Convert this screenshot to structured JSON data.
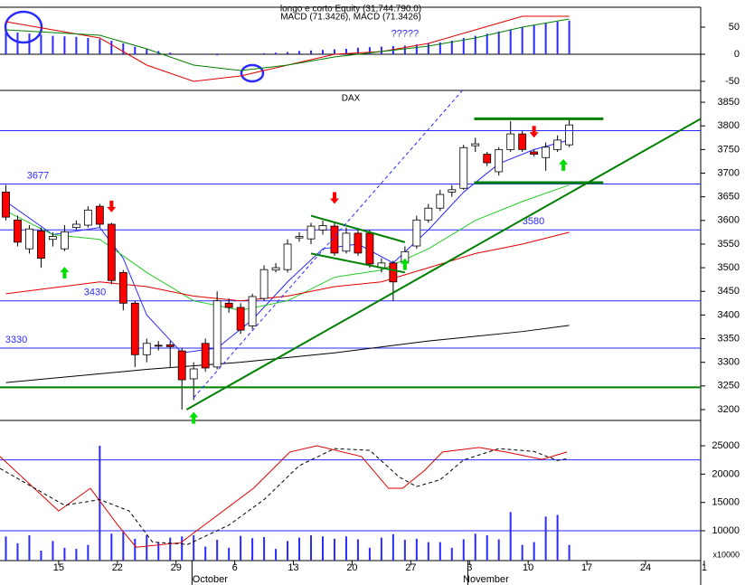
{
  "chart_data": [
    {
      "type": "macd",
      "title": "longo e corto Equity (31,744.790.0)",
      "subtitle": "MACD (71.3426), MACD (71.3426)",
      "annotation": {
        "text": "?????",
        "x": 34,
        "y": 37
      },
      "ylim": [
        -66.7,
        86.7
      ],
      "yticks": [
        -50,
        0,
        50
      ],
      "levels": [
        0
      ],
      "histogram": {
        "color": "#2a2aff",
        "values": [
          45,
          40,
          38,
          36,
          34,
          33,
          32,
          30,
          28,
          25,
          20,
          14,
          10,
          6,
          3,
          1,
          0,
          -1,
          -2,
          -1,
          0,
          1,
          2,
          3,
          4,
          6,
          7,
          8,
          9,
          10,
          12,
          13,
          14,
          15,
          16,
          18,
          20,
          22,
          25,
          30,
          34,
          38,
          42,
          46,
          50,
          54,
          57,
          60,
          62
        ]
      },
      "series": [
        {
          "color": "#e00000",
          "x": [
            0,
            4,
            8,
            12,
            16,
            20,
            24,
            28,
            32,
            36,
            40,
            44,
            48
          ],
          "values": [
            60,
            45,
            30,
            -20,
            -50,
            -40,
            -20,
            0,
            5,
            20,
            45,
            70,
            70
          ]
        },
        {
          "color": "#008000",
          "x": [
            0,
            4,
            8,
            12,
            16,
            20,
            24,
            28,
            32,
            36,
            40,
            44,
            48
          ],
          "values": [
            45,
            40,
            35,
            10,
            -20,
            -30,
            -20,
            -5,
            5,
            15,
            30,
            50,
            65
          ]
        }
      ]
    },
    {
      "type": "candlestick",
      "title": "DAX",
      "ylim": [
        3177,
        3875
      ],
      "yticks": [
        3200,
        3250,
        3300,
        3350,
        3400,
        3450,
        3500,
        3550,
        3600,
        3650,
        3700,
        3750,
        3800,
        3850
      ],
      "up_color": "#ffffff",
      "down_color": "#ff0000",
      "open": [
        3660,
        3601,
        3540,
        3578,
        3560,
        3540,
        3585,
        3590,
        3630,
        3592,
        3490,
        3425,
        3316,
        3336,
        3337,
        3324,
        3265,
        3340,
        3290,
        3425,
        3416,
        3377,
        3435,
        3495,
        3496,
        3563,
        3561,
        3580,
        3588,
        3535,
        3573,
        3573,
        3500,
        3510,
        3512,
        3546,
        3601,
        3626,
        3660,
        3668,
        3758,
        3740,
        3703,
        3750,
        3783,
        3745,
        3733,
        3750,
        3760
      ],
      "high": [
        3675,
        3610,
        3590,
        3585,
        3575,
        3590,
        3600,
        3630,
        3635,
        3595,
        3495,
        3430,
        3350,
        3345,
        3345,
        3330,
        3300,
        3350,
        3450,
        3435,
        3425,
        3445,
        3505,
        3510,
        3560,
        3575,
        3595,
        3600,
        3595,
        3585,
        3580,
        3580,
        3520,
        3515,
        3545,
        3610,
        3635,
        3665,
        3675,
        3760,
        3775,
        3745,
        3755,
        3810,
        3790,
        3750,
        3765,
        3780,
        3812
      ],
      "low": [
        3600,
        3545,
        3530,
        3500,
        3545,
        3535,
        3580,
        3585,
        3585,
        3465,
        3410,
        3290,
        3300,
        3325,
        3290,
        3200,
        3220,
        3280,
        3285,
        3405,
        3360,
        3370,
        3430,
        3490,
        3490,
        3555,
        3550,
        3570,
        3525,
        3530,
        3525,
        3500,
        3490,
        3430,
        3505,
        3540,
        3595,
        3620,
        3650,
        3665,
        3745,
        3715,
        3695,
        3745,
        3745,
        3735,
        3705,
        3745,
        3755
      ],
      "close": [
        3607,
        3554,
        3582,
        3520,
        3566,
        3576,
        3592,
        3622,
        3592,
        3473,
        3425,
        3316,
        3340,
        3334,
        3333,
        3263,
        3286,
        3288,
        3430,
        3416,
        3368,
        3439,
        3496,
        3500,
        3550,
        3566,
        3588,
        3589,
        3531,
        3573,
        3531,
        3508,
        3510,
        3470,
        3534,
        3601,
        3626,
        3655,
        3665,
        3754,
        3762,
        3722,
        3750,
        3783,
        3750,
        3740,
        3755,
        3770,
        3802
      ],
      "levels": [
        3677,
        3580,
        3430,
        3330
      ],
      "level_color": "#2a2aff",
      "series": [
        {
          "color": "#2a2aff",
          "x": [
            0,
            4,
            8,
            10,
            12,
            15,
            18,
            21,
            24,
            27,
            30,
            33,
            36,
            39,
            42,
            45,
            48
          ],
          "values": [
            3640,
            3570,
            3585,
            3520,
            3400,
            3320,
            3330,
            3390,
            3470,
            3540,
            3550,
            3510,
            3580,
            3660,
            3720,
            3750,
            3770
          ]
        },
        {
          "color": "#22cc22",
          "x": [
            0,
            4,
            8,
            12,
            16,
            20,
            24,
            28,
            32,
            36,
            40,
            44,
            48
          ],
          "values": [
            3620,
            3570,
            3560,
            3490,
            3430,
            3410,
            3430,
            3480,
            3495,
            3540,
            3600,
            3640,
            3675
          ]
        },
        {
          "color": "#e00000",
          "x": [
            0,
            8,
            12,
            16,
            20,
            24,
            28,
            32,
            36,
            40,
            44,
            48
          ],
          "values": [
            3445,
            3470,
            3460,
            3440,
            3430,
            3440,
            3460,
            3470,
            3500,
            3530,
            3550,
            3575
          ]
        },
        {
          "color": "#000000",
          "x": [
            0,
            12,
            20,
            28,
            36,
            44,
            48
          ],
          "values": [
            3257,
            3285,
            3300,
            3320,
            3345,
            3365,
            3378
          ]
        }
      ],
      "lines": [
        {
          "color": "#2a2aff",
          "width": 1,
          "x": [
            -0.5,
            59.2
          ],
          "values": [
            3790,
            3790
          ]
        },
        {
          "color": "#008000",
          "width": 2,
          "x": [
            -0.5,
            59.2
          ],
          "values": [
            3247,
            3247
          ]
        },
        {
          "color": "#008000",
          "width": 2,
          "x": [
            15.4,
            59.2
          ],
          "values": [
            3200,
            3815
          ]
        },
        {
          "color": "#008000",
          "width": 2,
          "x": [
            26,
            34
          ],
          "values": [
            3610,
            3554
          ]
        },
        {
          "color": "#008000",
          "width": 2,
          "x": [
            26,
            34
          ],
          "values": [
            3530,
            3490
          ]
        },
        {
          "color": "#008000",
          "width": 3,
          "x": [
            39.9,
            50.9
          ],
          "values": [
            3815,
            3815
          ]
        },
        {
          "color": "#008000",
          "width": 3,
          "x": [
            39.9,
            50.9
          ],
          "values": [
            3680,
            3680
          ]
        },
        {
          "color": "#2a2aff",
          "width": 1,
          "dash": true,
          "x": [
            16,
            38.9
          ],
          "values": [
            3225,
            3875
          ]
        }
      ],
      "signals": [
        {
          "x": 5,
          "y": 3502,
          "dir": "up",
          "color": "#00dd00"
        },
        {
          "x": 16,
          "y": 3195,
          "dir": "up",
          "color": "#00dd00"
        },
        {
          "x": 34,
          "y": 3520,
          "dir": "up",
          "color": "#00dd00"
        },
        {
          "x": 47.5,
          "y": 3730,
          "dir": "up",
          "color": "#00dd00"
        },
        {
          "x": 9,
          "y": 3617,
          "dir": "down",
          "color": "#ff0000"
        },
        {
          "x": 28,
          "y": 3635,
          "dir": "down",
          "color": "#ff0000"
        },
        {
          "x": 45,
          "y": 3775,
          "dir": "down",
          "color": "#ff0000"
        }
      ]
    },
    {
      "type": "oscillator",
      "y_unit": "x10000",
      "ylim": [
        4740,
        29470
      ],
      "yticks": [
        10000,
        15000,
        20000,
        25000
      ],
      "levels": [
        22500,
        10000
      ],
      "level_color": "#2a2aff",
      "xlim": [
        -0.5,
        59.2
      ],
      "xticks": [
        {
          "value": 4.5,
          "label": "15"
        },
        {
          "value": 9.5,
          "label": "22"
        },
        {
          "value": 14.5,
          "label": "29"
        },
        {
          "value": 19.5,
          "label": "6"
        },
        {
          "value": 24.5,
          "label": "13"
        },
        {
          "value": 29.5,
          "label": "20"
        },
        {
          "value": 34.5,
          "label": "27"
        },
        {
          "value": 39.5,
          "label": "3"
        },
        {
          "value": 44.5,
          "label": "10"
        },
        {
          "value": 49.5,
          "label": "17"
        },
        {
          "value": 54.5,
          "label": "24"
        },
        {
          "value": 59.5,
          "label": "1"
        }
      ],
      "months": [
        {
          "value": 17.4,
          "label": "October"
        },
        {
          "value": 40.9,
          "label": "November"
        }
      ],
      "bars": {
        "color": "#2a2aff",
        "values": [
          9000,
          7800,
          9200,
          6500,
          8200,
          7000,
          6800,
          7500,
          25000,
          9500,
          9800,
          8600,
          9200,
          8000,
          8800,
          9000,
          9200,
          7200,
          8400,
          7000,
          9100,
          8700,
          8900,
          6800,
          8200,
          8800,
          9200,
          9000,
          8600,
          9000,
          8500,
          7000,
          8800,
          9400,
          8400,
          8600,
          8000,
          8000,
          7000,
          8500,
          9500,
          9200,
          8500,
          13300,
          7500,
          8000,
          12500,
          12800,
          7500
        ]
      },
      "series": [
        {
          "color": "#e00000",
          "x": [
            -0.5,
            4.5,
            7.2,
            9.5,
            11.1,
            14.9,
            18,
            21.1,
            24.2,
            26.5,
            30.3,
            32.6,
            33.8,
            35.7,
            37.2,
            40.3,
            42.6,
            45.7,
            47.8
          ],
          "values": [
            23100,
            13500,
            17500,
            11100,
            7100,
            7900,
            12700,
            17500,
            23900,
            25000,
            23100,
            17500,
            17500,
            20700,
            23900,
            24700,
            23900,
            22600,
            23900
          ]
        },
        {
          "color": "#000000",
          "dash": true,
          "x": [
            -0.5,
            5,
            8,
            10.5,
            12.5,
            15.5,
            19,
            22,
            25,
            28,
            31,
            33.5,
            35,
            37,
            39,
            42,
            45,
            47,
            48
          ],
          "values": [
            21000,
            14500,
            15500,
            13500,
            8000,
            7600,
            11000,
            15500,
            21500,
            24500,
            24200,
            19500,
            17800,
            19000,
            22500,
            24500,
            24000,
            22400,
            22800
          ]
        }
      ]
    }
  ]
}
